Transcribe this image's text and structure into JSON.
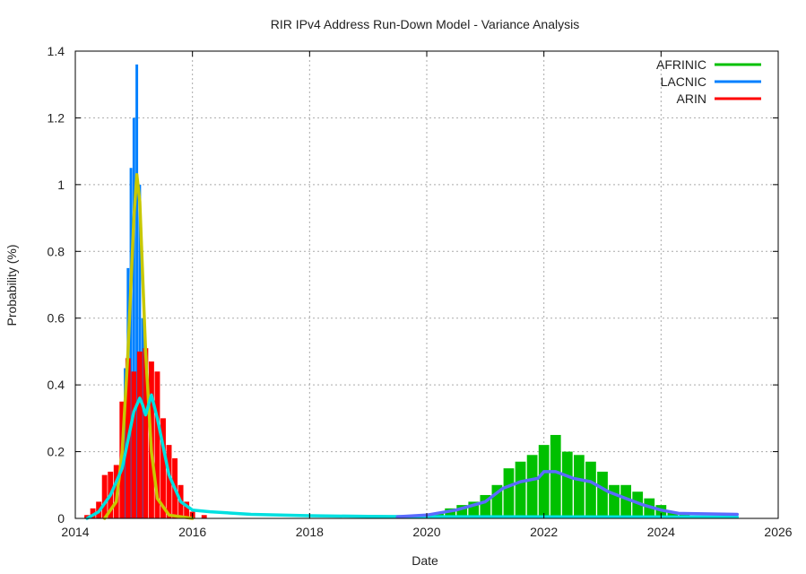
{
  "chart_data": {
    "type": "bar",
    "title": "RIR IPv4 Address Run-Down Model - Variance Analysis",
    "xlabel": "Date",
    "ylabel": "Probability (%)",
    "xlim": [
      2014,
      2026
    ],
    "ylim": [
      0,
      1.4
    ],
    "xticks": [
      "2014",
      "2016",
      "2018",
      "2020",
      "2022",
      "2024",
      "2026"
    ],
    "yticks": [
      "0",
      "0.2",
      "0.4",
      "0.6",
      "0.8",
      "1",
      "1.2",
      "1.4"
    ],
    "grid": true,
    "legend_position": "top-right",
    "legend": [
      {
        "label": "AFRINIC",
        "color": "#00c000"
      },
      {
        "label": "LACNIC",
        "color": "#0080ff"
      },
      {
        "label": "ARIN",
        "color": "#ff0000"
      }
    ],
    "series": [
      {
        "name": "AFRINIC",
        "kind": "bars",
        "color": "#00c000",
        "x": [
          2020.0,
          2020.2,
          2020.4,
          2020.6,
          2020.8,
          2021.0,
          2021.2,
          2021.4,
          2021.6,
          2021.8,
          2022.0,
          2022.2,
          2022.4,
          2022.6,
          2022.8,
          2023.0,
          2023.2,
          2023.4,
          2023.6,
          2023.8,
          2024.0,
          2024.2,
          2024.4,
          2024.6
        ],
        "values": [
          0.01,
          0.015,
          0.03,
          0.04,
          0.05,
          0.07,
          0.1,
          0.15,
          0.17,
          0.19,
          0.22,
          0.25,
          0.2,
          0.19,
          0.17,
          0.14,
          0.1,
          0.1,
          0.08,
          0.06,
          0.04,
          0.02,
          0.015,
          0.005
        ]
      },
      {
        "name": "LACNIC",
        "kind": "bars",
        "color": "#0080ff",
        "x": [
          2014.6,
          2014.7,
          2014.8,
          2014.85,
          2014.9,
          2014.95,
          2015.0,
          2015.05,
          2015.1,
          2015.15,
          2015.2,
          2015.3,
          2015.4
        ],
        "values": [
          0.02,
          0.1,
          0.25,
          0.45,
          0.75,
          1.05,
          1.2,
          1.36,
          1.0,
          0.6,
          0.3,
          0.1,
          0.02
        ]
      },
      {
        "name": "ARIN",
        "kind": "bars",
        "color": "#ff0000",
        "x": [
          2014.2,
          2014.3,
          2014.4,
          2014.5,
          2014.6,
          2014.7,
          2014.8,
          2014.9,
          2015.0,
          2015.1,
          2015.2,
          2015.3,
          2015.4,
          2015.5,
          2015.6,
          2015.7,
          2015.8,
          2015.9,
          2016.0,
          2016.2
        ],
        "values": [
          0.01,
          0.03,
          0.05,
          0.13,
          0.14,
          0.16,
          0.35,
          0.48,
          0.44,
          0.5,
          0.51,
          0.47,
          0.44,
          0.3,
          0.22,
          0.18,
          0.1,
          0.05,
          0.02,
          0.01
        ]
      },
      {
        "name": "",
        "kind": "line",
        "color": "#c8c800",
        "x": [
          2014.5,
          2014.7,
          2014.8,
          2014.9,
          2015.0,
          2015.05,
          2015.1,
          2015.2,
          2015.3,
          2015.4,
          2015.6,
          2016.0
        ],
        "values": [
          0.0,
          0.05,
          0.2,
          0.5,
          0.9,
          1.03,
          0.95,
          0.5,
          0.2,
          0.06,
          0.01,
          0.0
        ]
      },
      {
        "name": "",
        "kind": "line",
        "color": "#00e0e0",
        "x": [
          2014.2,
          2014.4,
          2014.6,
          2014.8,
          2015.0,
          2015.1,
          2015.15,
          2015.2,
          2015.3,
          2015.4,
          2015.6,
          2015.8,
          2016.0,
          2016.3,
          2017.0,
          2018.0,
          2019.0,
          2020.0,
          2025.3
        ],
        "values": [
          0.0,
          0.02,
          0.07,
          0.15,
          0.32,
          0.36,
          0.34,
          0.31,
          0.37,
          0.3,
          0.13,
          0.05,
          0.025,
          0.02,
          0.012,
          0.008,
          0.006,
          0.005,
          0.004
        ]
      },
      {
        "name": "",
        "kind": "line",
        "color": "#5a6bff",
        "x": [
          2019.5,
          2020.0,
          2020.5,
          2021.0,
          2021.3,
          2021.6,
          2021.9,
          2022.0,
          2022.2,
          2022.5,
          2022.8,
          2023.1,
          2023.4,
          2023.7,
          2024.0,
          2024.3,
          2025.3
        ],
        "values": [
          0.005,
          0.01,
          0.025,
          0.05,
          0.09,
          0.11,
          0.12,
          0.14,
          0.14,
          0.12,
          0.11,
          0.08,
          0.06,
          0.04,
          0.025,
          0.015,
          0.012
        ]
      }
    ]
  }
}
